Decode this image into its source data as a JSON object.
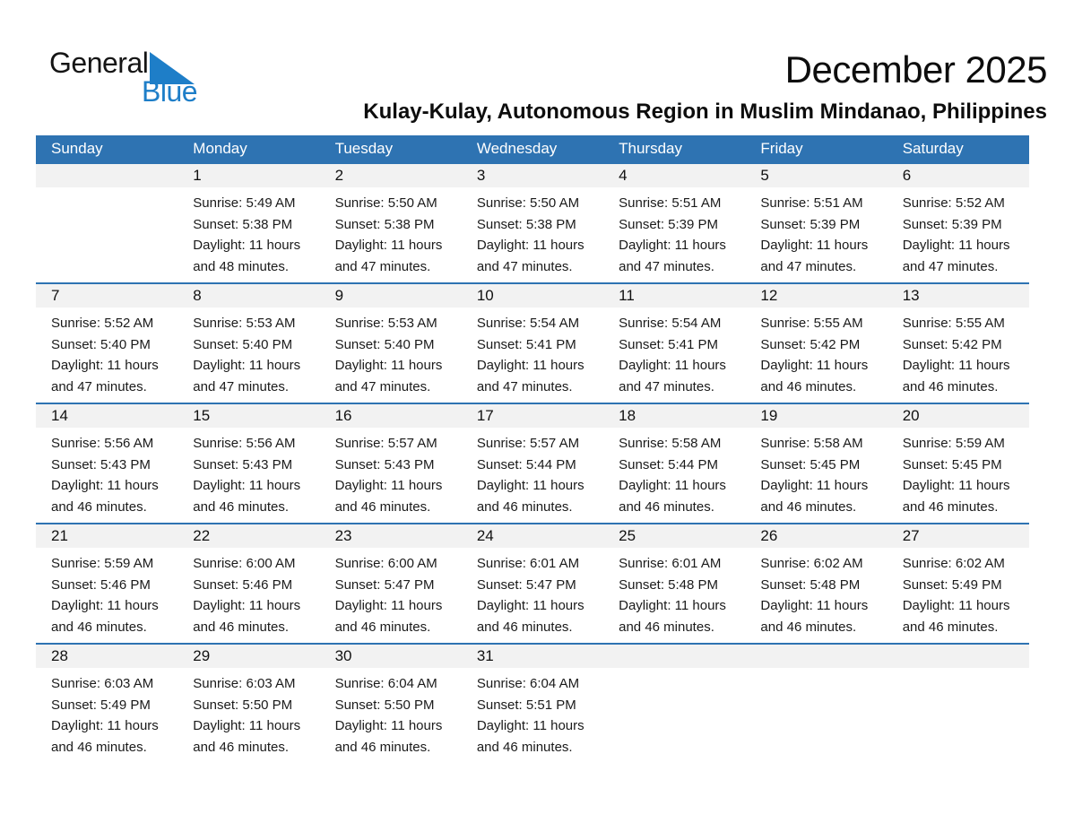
{
  "logo": {
    "general": "General",
    "blue": "Blue"
  },
  "header": {
    "title": "December 2025",
    "subtitle": "Kulay-Kulay, Autonomous Region in Muslim Mindanao, Philippines"
  },
  "colors": {
    "header_bg": "#2E73B2",
    "week_divider": "#2E73B2",
    "date_band_bg": "#F2F2F2",
    "logo_blue": "#1E7EC8",
    "header_text": "#FFFFFF"
  },
  "calendar": {
    "day_headers": [
      "Sunday",
      "Monday",
      "Tuesday",
      "Wednesday",
      "Thursday",
      "Friday",
      "Saturday"
    ],
    "weeks": [
      {
        "days": [
          {
            "date": ""
          },
          {
            "date": "1",
            "sunrise": "Sunrise: 5:49 AM",
            "sunset": "Sunset: 5:38 PM",
            "daylight_line1": "Daylight: 11 hours",
            "daylight_line2": "and 48 minutes."
          },
          {
            "date": "2",
            "sunrise": "Sunrise: 5:50 AM",
            "sunset": "Sunset: 5:38 PM",
            "daylight_line1": "Daylight: 11 hours",
            "daylight_line2": "and 47 minutes."
          },
          {
            "date": "3",
            "sunrise": "Sunrise: 5:50 AM",
            "sunset": "Sunset: 5:38 PM",
            "daylight_line1": "Daylight: 11 hours",
            "daylight_line2": "and 47 minutes."
          },
          {
            "date": "4",
            "sunrise": "Sunrise: 5:51 AM",
            "sunset": "Sunset: 5:39 PM",
            "daylight_line1": "Daylight: 11 hours",
            "daylight_line2": "and 47 minutes."
          },
          {
            "date": "5",
            "sunrise": "Sunrise: 5:51 AM",
            "sunset": "Sunset: 5:39 PM",
            "daylight_line1": "Daylight: 11 hours",
            "daylight_line2": "and 47 minutes."
          },
          {
            "date": "6",
            "sunrise": "Sunrise: 5:52 AM",
            "sunset": "Sunset: 5:39 PM",
            "daylight_line1": "Daylight: 11 hours",
            "daylight_line2": "and 47 minutes."
          }
        ]
      },
      {
        "days": [
          {
            "date": "7",
            "sunrise": "Sunrise: 5:52 AM",
            "sunset": "Sunset: 5:40 PM",
            "daylight_line1": "Daylight: 11 hours",
            "daylight_line2": "and 47 minutes."
          },
          {
            "date": "8",
            "sunrise": "Sunrise: 5:53 AM",
            "sunset": "Sunset: 5:40 PM",
            "daylight_line1": "Daylight: 11 hours",
            "daylight_line2": "and 47 minutes."
          },
          {
            "date": "9",
            "sunrise": "Sunrise: 5:53 AM",
            "sunset": "Sunset: 5:40 PM",
            "daylight_line1": "Daylight: 11 hours",
            "daylight_line2": "and 47 minutes."
          },
          {
            "date": "10",
            "sunrise": "Sunrise: 5:54 AM",
            "sunset": "Sunset: 5:41 PM",
            "daylight_line1": "Daylight: 11 hours",
            "daylight_line2": "and 47 minutes."
          },
          {
            "date": "11",
            "sunrise": "Sunrise: 5:54 AM",
            "sunset": "Sunset: 5:41 PM",
            "daylight_line1": "Daylight: 11 hours",
            "daylight_line2": "and 47 minutes."
          },
          {
            "date": "12",
            "sunrise": "Sunrise: 5:55 AM",
            "sunset": "Sunset: 5:42 PM",
            "daylight_line1": "Daylight: 11 hours",
            "daylight_line2": "and 46 minutes."
          },
          {
            "date": "13",
            "sunrise": "Sunrise: 5:55 AM",
            "sunset": "Sunset: 5:42 PM",
            "daylight_line1": "Daylight: 11 hours",
            "daylight_line2": "and 46 minutes."
          }
        ]
      },
      {
        "days": [
          {
            "date": "14",
            "sunrise": "Sunrise: 5:56 AM",
            "sunset": "Sunset: 5:43 PM",
            "daylight_line1": "Daylight: 11 hours",
            "daylight_line2": "and 46 minutes."
          },
          {
            "date": "15",
            "sunrise": "Sunrise: 5:56 AM",
            "sunset": "Sunset: 5:43 PM",
            "daylight_line1": "Daylight: 11 hours",
            "daylight_line2": "and 46 minutes."
          },
          {
            "date": "16",
            "sunrise": "Sunrise: 5:57 AM",
            "sunset": "Sunset: 5:43 PM",
            "daylight_line1": "Daylight: 11 hours",
            "daylight_line2": "and 46 minutes."
          },
          {
            "date": "17",
            "sunrise": "Sunrise: 5:57 AM",
            "sunset": "Sunset: 5:44 PM",
            "daylight_line1": "Daylight: 11 hours",
            "daylight_line2": "and 46 minutes."
          },
          {
            "date": "18",
            "sunrise": "Sunrise: 5:58 AM",
            "sunset": "Sunset: 5:44 PM",
            "daylight_line1": "Daylight: 11 hours",
            "daylight_line2": "and 46 minutes."
          },
          {
            "date": "19",
            "sunrise": "Sunrise: 5:58 AM",
            "sunset": "Sunset: 5:45 PM",
            "daylight_line1": "Daylight: 11 hours",
            "daylight_line2": "and 46 minutes."
          },
          {
            "date": "20",
            "sunrise": "Sunrise: 5:59 AM",
            "sunset": "Sunset: 5:45 PM",
            "daylight_line1": "Daylight: 11 hours",
            "daylight_line2": "and 46 minutes."
          }
        ]
      },
      {
        "days": [
          {
            "date": "21",
            "sunrise": "Sunrise: 5:59 AM",
            "sunset": "Sunset: 5:46 PM",
            "daylight_line1": "Daylight: 11 hours",
            "daylight_line2": "and 46 minutes."
          },
          {
            "date": "22",
            "sunrise": "Sunrise: 6:00 AM",
            "sunset": "Sunset: 5:46 PM",
            "daylight_line1": "Daylight: 11 hours",
            "daylight_line2": "and 46 minutes."
          },
          {
            "date": "23",
            "sunrise": "Sunrise: 6:00 AM",
            "sunset": "Sunset: 5:47 PM",
            "daylight_line1": "Daylight: 11 hours",
            "daylight_line2": "and 46 minutes."
          },
          {
            "date": "24",
            "sunrise": "Sunrise: 6:01 AM",
            "sunset": "Sunset: 5:47 PM",
            "daylight_line1": "Daylight: 11 hours",
            "daylight_line2": "and 46 minutes."
          },
          {
            "date": "25",
            "sunrise": "Sunrise: 6:01 AM",
            "sunset": "Sunset: 5:48 PM",
            "daylight_line1": "Daylight: 11 hours",
            "daylight_line2": "and 46 minutes."
          },
          {
            "date": "26",
            "sunrise": "Sunrise: 6:02 AM",
            "sunset": "Sunset: 5:48 PM",
            "daylight_line1": "Daylight: 11 hours",
            "daylight_line2": "and 46 minutes."
          },
          {
            "date": "27",
            "sunrise": "Sunrise: 6:02 AM",
            "sunset": "Sunset: 5:49 PM",
            "daylight_line1": "Daylight: 11 hours",
            "daylight_line2": "and 46 minutes."
          }
        ]
      },
      {
        "days": [
          {
            "date": "28",
            "sunrise": "Sunrise: 6:03 AM",
            "sunset": "Sunset: 5:49 PM",
            "daylight_line1": "Daylight: 11 hours",
            "daylight_line2": "and 46 minutes."
          },
          {
            "date": "29",
            "sunrise": "Sunrise: 6:03 AM",
            "sunset": "Sunset: 5:50 PM",
            "daylight_line1": "Daylight: 11 hours",
            "daylight_line2": "and 46 minutes."
          },
          {
            "date": "30",
            "sunrise": "Sunrise: 6:04 AM",
            "sunset": "Sunset: 5:50 PM",
            "daylight_line1": "Daylight: 11 hours",
            "daylight_line2": "and 46 minutes."
          },
          {
            "date": "31",
            "sunrise": "Sunrise: 6:04 AM",
            "sunset": "Sunset: 5:51 PM",
            "daylight_line1": "Daylight: 11 hours",
            "daylight_line2": "and 46 minutes."
          },
          {
            "date": ""
          },
          {
            "date": ""
          },
          {
            "date": ""
          }
        ]
      }
    ]
  }
}
